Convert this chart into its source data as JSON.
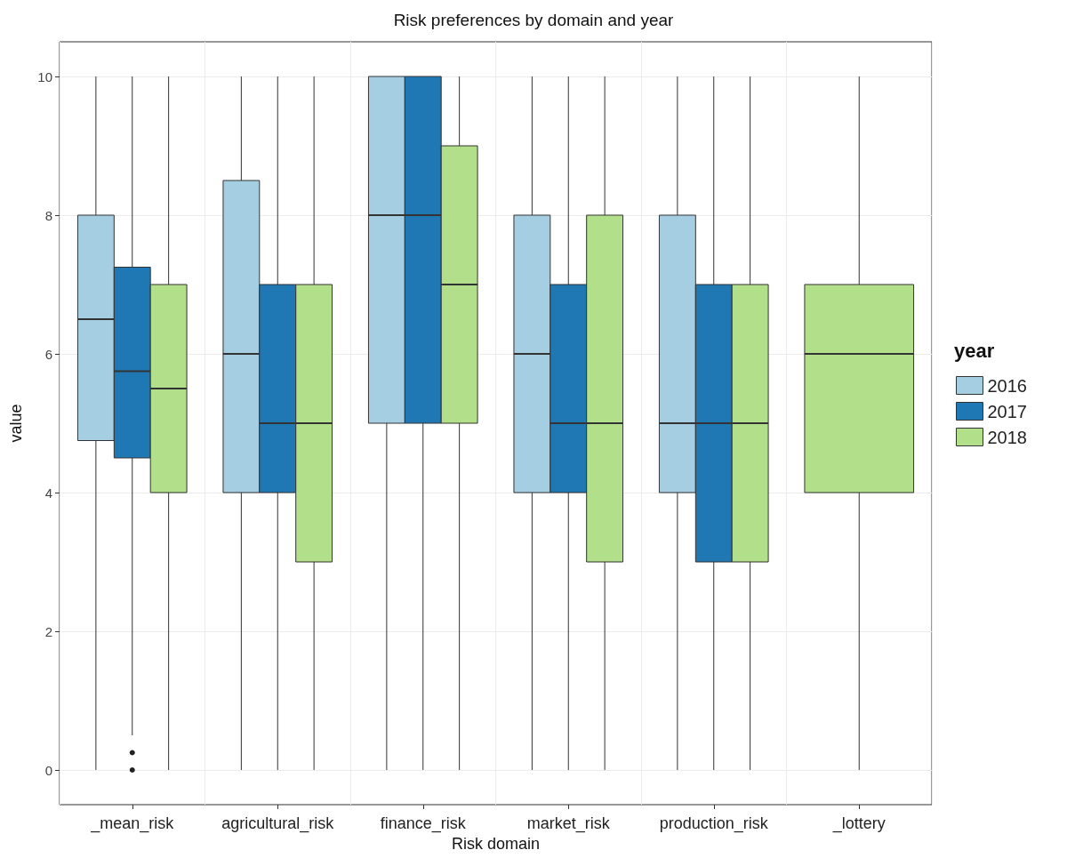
{
  "chart_data": {
    "type": "box",
    "title": "Risk preferences by domain and year",
    "xlabel": "Risk domain",
    "ylabel": "value",
    "legend_title": "year",
    "categories": [
      "_mean_risk",
      "agricultural_risk",
      "finance_risk",
      "market_risk",
      "production_risk",
      "_lottery"
    ],
    "ylim": [
      -0.5,
      10.5
    ],
    "yticks": [
      0,
      2,
      4,
      6,
      8,
      10
    ],
    "grid": true,
    "legend": "right",
    "series": [
      {
        "name": "2016",
        "color": "#a6cee3",
        "boxes": [
          {
            "low": 0,
            "q1": 4.75,
            "median": 6.5,
            "q3": 8,
            "high": 10
          },
          {
            "low": 0,
            "q1": 4,
            "median": 6,
            "q3": 8.5,
            "high": 10
          },
          {
            "low": 0,
            "q1": 5,
            "median": 8,
            "q3": 10,
            "high": 10
          },
          {
            "low": 0,
            "q1": 4,
            "median": 6,
            "q3": 8,
            "high": 10
          },
          {
            "low": 0,
            "q1": 4,
            "median": 5,
            "q3": 8,
            "high": 10
          },
          null
        ]
      },
      {
        "name": "2017",
        "color": "#1f78b4",
        "boxes": [
          {
            "low": 0.5,
            "q1": 4.5,
            "median": 5.75,
            "q3": 7.25,
            "high": 10,
            "outliers": [
              0.25,
              0
            ]
          },
          {
            "low": 0,
            "q1": 4,
            "median": 5,
            "q3": 7,
            "high": 10
          },
          {
            "low": 0,
            "q1": 5,
            "median": 8,
            "q3": 10,
            "high": 10
          },
          {
            "low": 0,
            "q1": 4,
            "median": 5,
            "q3": 7,
            "high": 10
          },
          {
            "low": 0,
            "q1": 3,
            "median": 5,
            "q3": 7,
            "high": 10
          },
          null
        ]
      },
      {
        "name": "2018",
        "color": "#b2df8a",
        "boxes": [
          {
            "low": 0,
            "q1": 4,
            "median": 5.5,
            "q3": 7,
            "high": 10
          },
          {
            "low": 0,
            "q1": 3,
            "median": 5,
            "q3": 7,
            "high": 10
          },
          {
            "low": 0,
            "q1": 5,
            "median": 7,
            "q3": 9,
            "high": 10
          },
          {
            "low": 0,
            "q1": 3,
            "median": 5,
            "q3": 8,
            "high": 10
          },
          {
            "low": 0,
            "q1": 3,
            "median": 5,
            "q3": 7,
            "high": 10
          },
          {
            "low": 0,
            "q1": 4,
            "median": 6,
            "q3": 7,
            "high": 10
          }
        ]
      }
    ]
  }
}
